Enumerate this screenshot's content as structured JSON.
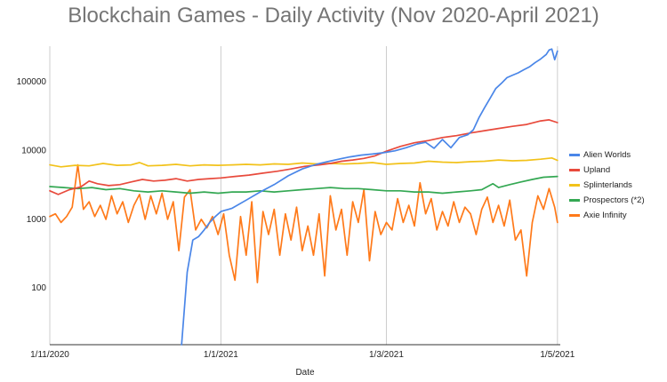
{
  "chart_data": {
    "type": "line",
    "title": "Blockchain Games - Daily Activity (Nov 2020-April 2021)",
    "xlabel": "Date",
    "ylabel": "",
    "y_scale": "log",
    "ylim": [
      15,
      330000
    ],
    "xlim": [
      "2020-11-01",
      "2021-05-02"
    ],
    "x_ticks": [
      {
        "date": "2020-11-01",
        "label": "1/11/2020"
      },
      {
        "date": "2021-01-01",
        "label": "1/1/2021"
      },
      {
        "date": "2021-03-01",
        "label": "1/3/2021"
      },
      {
        "date": "2021-05-01",
        "label": "1/5/2021"
      }
    ],
    "y_ticks": [
      100,
      1000,
      10000,
      100000
    ],
    "grid": "vertical",
    "legend_position": "right",
    "series": [
      {
        "name": "Alien Worlds",
        "color": "#4a86e8",
        "points": [
          [
            "2020-12-18",
            15
          ],
          [
            "2020-12-20",
            170
          ],
          [
            "2020-12-22",
            500
          ],
          [
            "2020-12-24",
            560
          ],
          [
            "2020-12-26",
            700
          ],
          [
            "2020-12-28",
            900
          ],
          [
            "2020-12-30",
            1100
          ],
          [
            "2021-01-01",
            1300
          ],
          [
            "2021-01-05",
            1450
          ],
          [
            "2021-01-10",
            1900
          ],
          [
            "2021-01-15",
            2500
          ],
          [
            "2021-01-20",
            3200
          ],
          [
            "2021-01-25",
            4300
          ],
          [
            "2021-01-30",
            5400
          ],
          [
            "2021-02-04",
            6300
          ],
          [
            "2021-02-08",
            6900
          ],
          [
            "2021-02-12",
            7500
          ],
          [
            "2021-02-16",
            8100
          ],
          [
            "2021-02-20",
            8600
          ],
          [
            "2021-02-24",
            8900
          ],
          [
            "2021-02-28",
            9300
          ],
          [
            "2021-03-04",
            9900
          ],
          [
            "2021-03-08",
            11000
          ],
          [
            "2021-03-12",
            12500
          ],
          [
            "2021-03-15",
            13200
          ],
          [
            "2021-03-18",
            10800
          ],
          [
            "2021-03-21",
            14500
          ],
          [
            "2021-03-24",
            11000
          ],
          [
            "2021-03-27",
            15500
          ],
          [
            "2021-03-30",
            17000
          ],
          [
            "2021-04-01",
            20000
          ],
          [
            "2021-04-03",
            30000
          ],
          [
            "2021-04-05",
            42000
          ],
          [
            "2021-04-07",
            58000
          ],
          [
            "2021-04-09",
            80000
          ],
          [
            "2021-04-11",
            95000
          ],
          [
            "2021-04-13",
            115000
          ],
          [
            "2021-04-15",
            125000
          ],
          [
            "2021-04-17",
            135000
          ],
          [
            "2021-04-19",
            150000
          ],
          [
            "2021-04-21",
            165000
          ],
          [
            "2021-04-23",
            190000
          ],
          [
            "2021-04-25",
            215000
          ],
          [
            "2021-04-27",
            250000
          ],
          [
            "2021-04-28",
            290000
          ],
          [
            "2021-04-29",
            300000
          ],
          [
            "2021-04-30",
            210000
          ],
          [
            "2021-05-01",
            280000
          ]
        ]
      },
      {
        "name": "Upland",
        "color": "#e84a3c",
        "points": [
          [
            "2020-11-01",
            2600
          ],
          [
            "2020-11-04",
            2300
          ],
          [
            "2020-11-08",
            2700
          ],
          [
            "2020-11-12",
            2950
          ],
          [
            "2020-11-15",
            3600
          ],
          [
            "2020-11-18",
            3300
          ],
          [
            "2020-11-22",
            3100
          ],
          [
            "2020-11-26",
            3200
          ],
          [
            "2020-11-30",
            3500
          ],
          [
            "2020-12-04",
            3800
          ],
          [
            "2020-12-08",
            3600
          ],
          [
            "2020-12-12",
            3700
          ],
          [
            "2020-12-16",
            3900
          ],
          [
            "2020-12-20",
            3600
          ],
          [
            "2020-12-24",
            3800
          ],
          [
            "2020-12-28",
            3900
          ],
          [
            "2021-01-01",
            4000
          ],
          [
            "2021-01-06",
            4200
          ],
          [
            "2021-01-11",
            4400
          ],
          [
            "2021-01-16",
            4700
          ],
          [
            "2021-01-21",
            5000
          ],
          [
            "2021-01-26",
            5400
          ],
          [
            "2021-01-31",
            5900
          ],
          [
            "2021-02-05",
            6200
          ],
          [
            "2021-02-09",
            6500
          ],
          [
            "2021-02-13",
            7000
          ],
          [
            "2021-02-17",
            7300
          ],
          [
            "2021-02-21",
            7700
          ],
          [
            "2021-02-25",
            8400
          ],
          [
            "2021-03-01",
            9800
          ],
          [
            "2021-03-06",
            11500
          ],
          [
            "2021-03-11",
            13000
          ],
          [
            "2021-03-16",
            14000
          ],
          [
            "2021-03-21",
            15500
          ],
          [
            "2021-03-26",
            16500
          ],
          [
            "2021-03-31",
            18000
          ],
          [
            "2021-04-05",
            19500
          ],
          [
            "2021-04-10",
            21000
          ],
          [
            "2021-04-15",
            22500
          ],
          [
            "2021-04-20",
            24000
          ],
          [
            "2021-04-25",
            27000
          ],
          [
            "2021-04-28",
            28000
          ],
          [
            "2021-05-01",
            25500
          ]
        ]
      },
      {
        "name": "Splinterlands",
        "color": "#f2c21a",
        "points": [
          [
            "2020-11-01",
            6200
          ],
          [
            "2020-11-05",
            5800
          ],
          [
            "2020-11-10",
            6100
          ],
          [
            "2020-11-15",
            6000
          ],
          [
            "2020-11-20",
            6500
          ],
          [
            "2020-11-25",
            6100
          ],
          [
            "2020-11-30",
            6200
          ],
          [
            "2020-12-03",
            6700
          ],
          [
            "2020-12-06",
            6000
          ],
          [
            "2020-12-11",
            6100
          ],
          [
            "2020-12-16",
            6300
          ],
          [
            "2020-12-21",
            6000
          ],
          [
            "2020-12-26",
            6200
          ],
          [
            "2020-12-31",
            6100
          ],
          [
            "2021-01-05",
            6200
          ],
          [
            "2021-01-10",
            6300
          ],
          [
            "2021-01-15",
            6200
          ],
          [
            "2021-01-20",
            6400
          ],
          [
            "2021-01-25",
            6300
          ],
          [
            "2021-01-30",
            6600
          ],
          [
            "2021-02-04",
            6400
          ],
          [
            "2021-02-09",
            6500
          ],
          [
            "2021-02-14",
            6400
          ],
          [
            "2021-02-19",
            6500
          ],
          [
            "2021-02-24",
            6700
          ],
          [
            "2021-03-01",
            6300
          ],
          [
            "2021-03-06",
            6500
          ],
          [
            "2021-03-11",
            6600
          ],
          [
            "2021-03-16",
            7000
          ],
          [
            "2021-03-21",
            6800
          ],
          [
            "2021-03-26",
            6700
          ],
          [
            "2021-03-31",
            6900
          ],
          [
            "2021-04-05",
            7000
          ],
          [
            "2021-04-10",
            7300
          ],
          [
            "2021-04-15",
            7100
          ],
          [
            "2021-04-20",
            7200
          ],
          [
            "2021-04-25",
            7500
          ],
          [
            "2021-04-29",
            7800
          ],
          [
            "2021-05-01",
            7200
          ]
        ]
      },
      {
        "name": "Prospectors (*2)",
        "color": "#34a853",
        "points": [
          [
            "2020-11-01",
            3000
          ],
          [
            "2020-11-06",
            2900
          ],
          [
            "2020-11-11",
            2800
          ],
          [
            "2020-11-16",
            2900
          ],
          [
            "2020-11-21",
            2700
          ],
          [
            "2020-11-26",
            2800
          ],
          [
            "2020-12-01",
            2600
          ],
          [
            "2020-12-06",
            2500
          ],
          [
            "2020-12-11",
            2600
          ],
          [
            "2020-12-16",
            2500
          ],
          [
            "2020-12-21",
            2400
          ],
          [
            "2020-12-26",
            2500
          ],
          [
            "2020-12-31",
            2400
          ],
          [
            "2021-01-05",
            2500
          ],
          [
            "2021-01-10",
            2500
          ],
          [
            "2021-01-15",
            2600
          ],
          [
            "2021-01-20",
            2500
          ],
          [
            "2021-01-25",
            2600
          ],
          [
            "2021-01-30",
            2700
          ],
          [
            "2021-02-04",
            2800
          ],
          [
            "2021-02-09",
            2900
          ],
          [
            "2021-02-14",
            2800
          ],
          [
            "2021-02-19",
            2800
          ],
          [
            "2021-02-24",
            2700
          ],
          [
            "2021-03-01",
            2600
          ],
          [
            "2021-03-06",
            2600
          ],
          [
            "2021-03-11",
            2500
          ],
          [
            "2021-03-16",
            2500
          ],
          [
            "2021-03-21",
            2400
          ],
          [
            "2021-03-26",
            2500
          ],
          [
            "2021-03-31",
            2600
          ],
          [
            "2021-04-04",
            2700
          ],
          [
            "2021-04-08",
            3300
          ],
          [
            "2021-04-10",
            2900
          ],
          [
            "2021-04-14",
            3200
          ],
          [
            "2021-04-18",
            3500
          ],
          [
            "2021-04-22",
            3800
          ],
          [
            "2021-04-26",
            4100
          ],
          [
            "2021-05-01",
            4200
          ]
        ]
      },
      {
        "name": "Axie Infinity",
        "color": "#ff7a1a",
        "points": [
          [
            "2020-11-01",
            1100
          ],
          [
            "2020-11-03",
            1200
          ],
          [
            "2020-11-05",
            900
          ],
          [
            "2020-11-07",
            1100
          ],
          [
            "2020-11-09",
            1500
          ],
          [
            "2020-11-11",
            6200
          ],
          [
            "2020-11-13",
            1400
          ],
          [
            "2020-11-15",
            1800
          ],
          [
            "2020-11-17",
            1100
          ],
          [
            "2020-11-19",
            1600
          ],
          [
            "2020-11-21",
            1000
          ],
          [
            "2020-11-23",
            2200
          ],
          [
            "2020-11-25",
            1200
          ],
          [
            "2020-11-27",
            1800
          ],
          [
            "2020-11-29",
            900
          ],
          [
            "2020-12-01",
            1600
          ],
          [
            "2020-12-03",
            2300
          ],
          [
            "2020-12-05",
            1000
          ],
          [
            "2020-12-07",
            2200
          ],
          [
            "2020-12-09",
            1200
          ],
          [
            "2020-12-11",
            2400
          ],
          [
            "2020-12-13",
            1000
          ],
          [
            "2020-12-15",
            1800
          ],
          [
            "2020-12-17",
            350
          ],
          [
            "2020-12-19",
            2100
          ],
          [
            "2020-12-21",
            2700
          ],
          [
            "2020-12-23",
            700
          ],
          [
            "2020-12-25",
            1000
          ],
          [
            "2020-12-27",
            750
          ],
          [
            "2020-12-29",
            1100
          ],
          [
            "2020-12-31",
            600
          ],
          [
            "2021-01-02",
            1200
          ],
          [
            "2021-01-04",
            300
          ],
          [
            "2021-01-06",
            130
          ],
          [
            "2021-01-08",
            1100
          ],
          [
            "2021-01-10",
            300
          ],
          [
            "2021-01-12",
            1800
          ],
          [
            "2021-01-14",
            120
          ],
          [
            "2021-01-16",
            1300
          ],
          [
            "2021-01-18",
            600
          ],
          [
            "2021-01-20",
            1400
          ],
          [
            "2021-01-22",
            300
          ],
          [
            "2021-01-24",
            1200
          ],
          [
            "2021-01-26",
            500
          ],
          [
            "2021-01-28",
            1500
          ],
          [
            "2021-01-30",
            350
          ],
          [
            "2021-02-01",
            800
          ],
          [
            "2021-02-03",
            300
          ],
          [
            "2021-02-05",
            1200
          ],
          [
            "2021-02-07",
            150
          ],
          [
            "2021-02-09",
            2200
          ],
          [
            "2021-02-11",
            700
          ],
          [
            "2021-02-13",
            1400
          ],
          [
            "2021-02-15",
            300
          ],
          [
            "2021-02-17",
            1800
          ],
          [
            "2021-02-19",
            900
          ],
          [
            "2021-02-21",
            2700
          ],
          [
            "2021-02-23",
            250
          ],
          [
            "2021-02-25",
            1300
          ],
          [
            "2021-02-27",
            600
          ],
          [
            "2021-03-01",
            900
          ],
          [
            "2021-03-03",
            700
          ],
          [
            "2021-03-05",
            2000
          ],
          [
            "2021-03-07",
            900
          ],
          [
            "2021-03-09",
            1600
          ],
          [
            "2021-03-11",
            800
          ],
          [
            "2021-03-13",
            3400
          ],
          [
            "2021-03-15",
            1200
          ],
          [
            "2021-03-17",
            2000
          ],
          [
            "2021-03-19",
            700
          ],
          [
            "2021-03-21",
            1300
          ],
          [
            "2021-03-23",
            800
          ],
          [
            "2021-03-25",
            1800
          ],
          [
            "2021-03-27",
            900
          ],
          [
            "2021-03-29",
            1500
          ],
          [
            "2021-03-31",
            1200
          ],
          [
            "2021-04-02",
            600
          ],
          [
            "2021-04-04",
            1400
          ],
          [
            "2021-04-06",
            2100
          ],
          [
            "2021-04-08",
            900
          ],
          [
            "2021-04-10",
            1600
          ],
          [
            "2021-04-12",
            800
          ],
          [
            "2021-04-14",
            1900
          ],
          [
            "2021-04-16",
            500
          ],
          [
            "2021-04-18",
            700
          ],
          [
            "2021-04-20",
            150
          ],
          [
            "2021-04-22",
            900
          ],
          [
            "2021-04-24",
            2200
          ],
          [
            "2021-04-26",
            1400
          ],
          [
            "2021-04-28",
            2800
          ],
          [
            "2021-04-30",
            1500
          ],
          [
            "2021-05-01",
            900
          ]
        ]
      }
    ]
  }
}
